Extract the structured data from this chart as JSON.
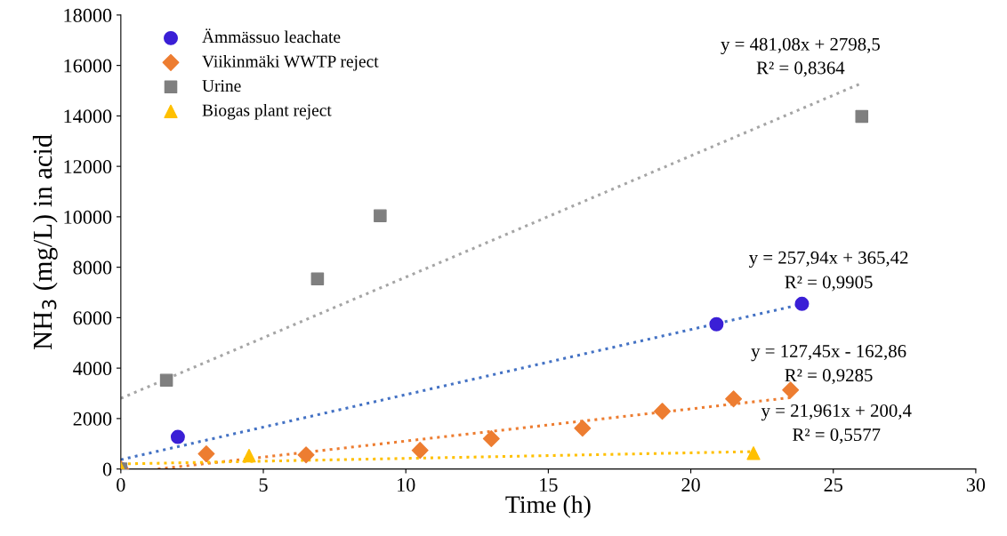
{
  "chart_data": {
    "type": "scatter",
    "xlabel": "Time (h)",
    "ylabel": "NH$_{3}$ (mg/L) in acid",
    "xlim": [
      0,
      30
    ],
    "xticks": [
      0,
      5,
      10,
      15,
      20,
      25,
      30
    ],
    "ylim": [
      0,
      18000
    ],
    "yticks": [
      0,
      2000,
      4000,
      6000,
      8000,
      10000,
      12000,
      14000,
      16000,
      18000
    ],
    "grid": false,
    "legend": "top left",
    "series": [
      {
        "type": "line",
        "line_style": "dotted",
        "marker": "none",
        "color": "#a5a5a5",
        "x": [
          0,
          26
        ],
        "values": [
          2800,
          15300
        ]
      },
      {
        "type": "line",
        "line_style": "dotted",
        "marker": "none",
        "color": "#4472c4",
        "x": [
          0,
          24
        ],
        "values": [
          370,
          6560
        ]
      },
      {
        "type": "line",
        "line_style": "dotted",
        "marker": "none",
        "color": "#ed7d31",
        "x": [
          1.3,
          23.5
        ],
        "values": [
          0,
          2830
        ]
      },
      {
        "type": "line",
        "line_style": "dotted",
        "marker": "none",
        "color": "#ffc000",
        "x": [
          0,
          22.2
        ],
        "values": [
          200,
          690
        ]
      },
      {
        "name": "Ämmässuo leachate",
        "marker": "circle",
        "color": "#3a1fd6",
        "x": [
          0,
          2.0,
          20.9,
          23.9
        ],
        "values": [
          0,
          1270,
          5740,
          6550
        ]
      },
      {
        "name": "Viikinmäki WWTP reject",
        "marker": "diamond",
        "color": "#ed7d31",
        "x": [
          0,
          3.0,
          6.5,
          10.5,
          13.0,
          16.2,
          19.0,
          21.5,
          23.5
        ],
        "values": [
          0,
          600,
          560,
          740,
          1200,
          1620,
          2290,
          2780,
          3130
        ]
      },
      {
        "name": "Urine",
        "marker": "square",
        "color": "#7f7f7f",
        "x": [
          0,
          1.6,
          6.9,
          9.1,
          26.0
        ],
        "values": [
          0,
          3520,
          7540,
          10040,
          13980
        ]
      },
      {
        "name": "Biogas plant reject",
        "marker": "triangle",
        "color": "#ffc000",
        "x": [
          0,
          4.5,
          22.2
        ],
        "values": [
          0,
          530,
          630
        ]
      }
    ],
    "annotations": [
      "y = 481,08x + 2798,5",
      "R² = 0,8364",
      "y = 257,94x + 365,42",
      "R² = 0,9905",
      "y = 127,45x - 162,86",
      "R² = 0,9285",
      "y = 21,961x + 200,4",
      "R² = 0,5577"
    ]
  }
}
